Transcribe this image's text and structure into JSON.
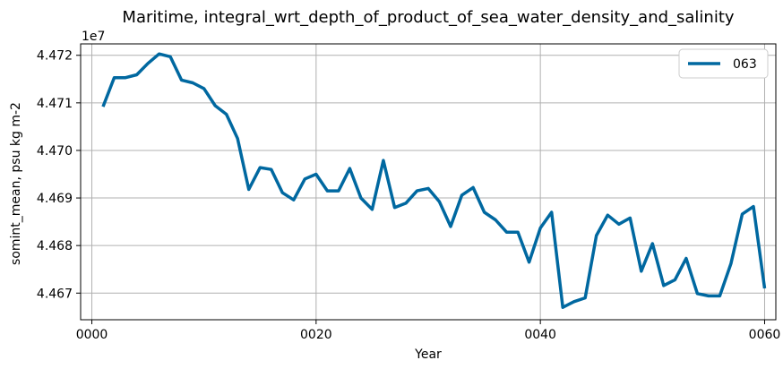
{
  "chart_data": {
    "type": "line",
    "title": "Maritime, integral_wrt_depth_of_product_of_sea_water_density_and_salinity",
    "xlabel": "Year",
    "ylabel": "somint_mean, psu kg m-2",
    "y_offset_label": "1e7",
    "xlim": [
      -1,
      61
    ],
    "ylim": [
      44.6644,
      44.7224
    ],
    "x_ticks": [
      0,
      20,
      40,
      60
    ],
    "x_tick_labels": [
      "0000",
      "0020",
      "0040",
      "0060"
    ],
    "y_ticks": [
      44.67,
      44.68,
      44.69,
      44.7,
      44.71,
      44.72
    ],
    "y_tick_labels": [
      "4.467",
      "4.468",
      "4.469",
      "4.470",
      "4.471",
      "4.472"
    ],
    "grid": true,
    "legend": {
      "placement": "top-right",
      "entries": [
        "063"
      ]
    },
    "line_color": "#0068a0",
    "x": [
      1,
      2,
      3,
      4,
      5,
      6,
      7,
      8,
      9,
      10,
      11,
      12,
      13,
      14,
      15,
      16,
      17,
      18,
      19,
      20,
      21,
      22,
      23,
      24,
      25,
      26,
      27,
      28,
      29,
      30,
      31,
      32,
      33,
      34,
      35,
      36,
      37,
      38,
      39,
      40,
      41,
      42,
      43,
      44,
      45,
      46,
      47,
      48,
      49,
      50,
      51,
      52,
      53,
      54,
      55,
      56,
      57,
      58,
      59,
      60
    ],
    "series": [
      {
        "name": "063",
        "values": [
          44.7092,
          44.7153,
          44.7153,
          44.7159,
          44.7183,
          44.7203,
          44.7197,
          44.7148,
          44.7142,
          44.713,
          44.7094,
          44.7076,
          44.7025,
          44.6918,
          44.6964,
          44.696,
          44.6911,
          44.6896,
          44.694,
          44.695,
          44.6915,
          44.6915,
          44.6962,
          44.69,
          44.6876,
          44.6979,
          44.688,
          44.6889,
          44.6915,
          44.692,
          44.6892,
          44.684,
          44.6906,
          44.6922,
          44.687,
          44.6854,
          44.6828,
          44.6828,
          44.6765,
          44.6837,
          44.687,
          44.667,
          44.6682,
          44.669,
          44.6821,
          44.6864,
          44.6845,
          44.6858,
          44.6746,
          44.6804,
          44.6716,
          44.6728,
          44.6773,
          44.6699,
          44.6694,
          44.6694,
          44.6762,
          44.6866,
          44.6882,
          44.671
        ]
      }
    ]
  }
}
